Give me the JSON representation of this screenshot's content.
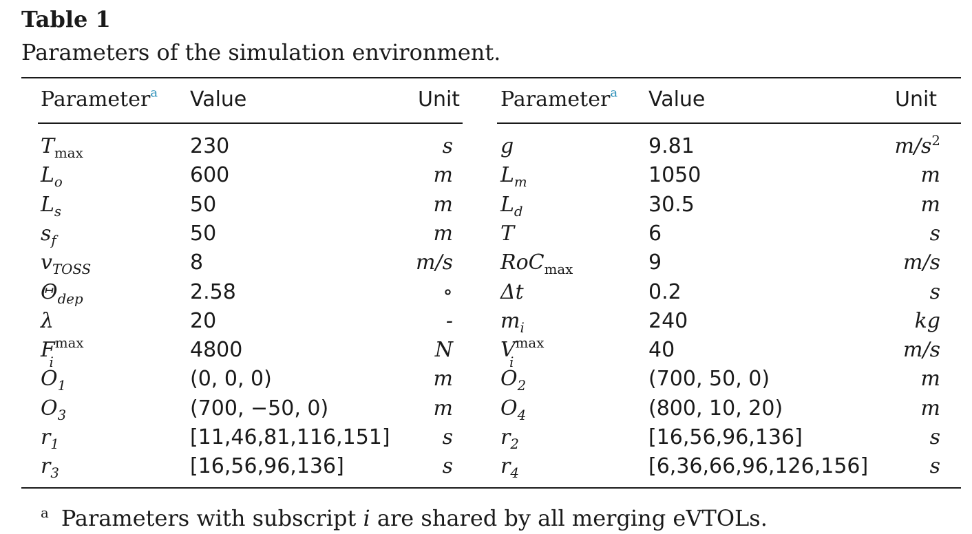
{
  "table": {
    "label": "Table 1",
    "caption": "Parameters of the simulation environment.",
    "headers": {
      "parameter": "Parameter",
      "footnote_mark": "a",
      "value": "Value",
      "unit": "Unit"
    },
    "left_rows": [
      {
        "param": "T",
        "param_sub": "max",
        "value": "230",
        "unit": "s"
      },
      {
        "param": "L",
        "param_sub": "o",
        "value": "600",
        "unit": "m"
      },
      {
        "param": "L",
        "param_sub": "s",
        "value": "50",
        "unit": "m"
      },
      {
        "param": "s",
        "param_sub": "f",
        "value": "50",
        "unit": "m"
      },
      {
        "param": "v",
        "param_sub": "TOSS",
        "value": "8",
        "unit": "m/s"
      },
      {
        "param": "Θ",
        "param_sub": "dep",
        "value": "2.58",
        "unit": "∘"
      },
      {
        "param": "λ",
        "param_sub": "",
        "value": "20",
        "unit": "-"
      },
      {
        "param": "F",
        "param_sub": "i",
        "param_sup": "max",
        "value": "4800",
        "unit": "N"
      },
      {
        "param": "O",
        "param_sub": "1",
        "value": "(0, 0, 0)",
        "unit": "m"
      },
      {
        "param": "O",
        "param_sub": "3",
        "value": "(700, −50, 0)",
        "unit": "m"
      },
      {
        "param": "r",
        "param_sub": "1",
        "value": "[11,46,81,116,151]",
        "unit": "s"
      },
      {
        "param": "r",
        "param_sub": "3",
        "value": "[16,56,96,136]",
        "unit": "s"
      }
    ],
    "right_rows": [
      {
        "param": "g",
        "param_sub": "",
        "value": "9.81",
        "unit": "m/s",
        "unit_sup": "2"
      },
      {
        "param": "L",
        "param_sub": "m",
        "value": "1050",
        "unit": "m"
      },
      {
        "param": "L",
        "param_sub": "d",
        "value": "30.5",
        "unit": "m"
      },
      {
        "param": "T",
        "param_sub": "",
        "value": "6",
        "unit": "s"
      },
      {
        "param": "RoC",
        "param_sub": "max",
        "value": "9",
        "unit": "m/s"
      },
      {
        "param": "Δt",
        "param_sub": "",
        "value": "0.2",
        "unit": "s"
      },
      {
        "param": "m",
        "param_sub": "i",
        "value": "240",
        "unit": "kg"
      },
      {
        "param": "V",
        "param_sub": "i",
        "param_sup": "max",
        "value": "40",
        "unit": "m/s"
      },
      {
        "param": "O",
        "param_sub": "2",
        "value": "(700, 50, 0)",
        "unit": "m"
      },
      {
        "param": "O",
        "param_sub": "4",
        "value": "(800, 10, 20)",
        "unit": "m"
      },
      {
        "param": "r",
        "param_sub": "2",
        "value": "[16,56,96,136]",
        "unit": "s"
      },
      {
        "param": "r",
        "param_sub": "4",
        "value": "[6,36,66,96,126,156]",
        "unit": "s"
      }
    ],
    "footnote": {
      "mark": "a",
      "text_before": "Parameters with subscript ",
      "italic_term": "i",
      "text_after": " are shared by all merging eVTOLs."
    }
  }
}
